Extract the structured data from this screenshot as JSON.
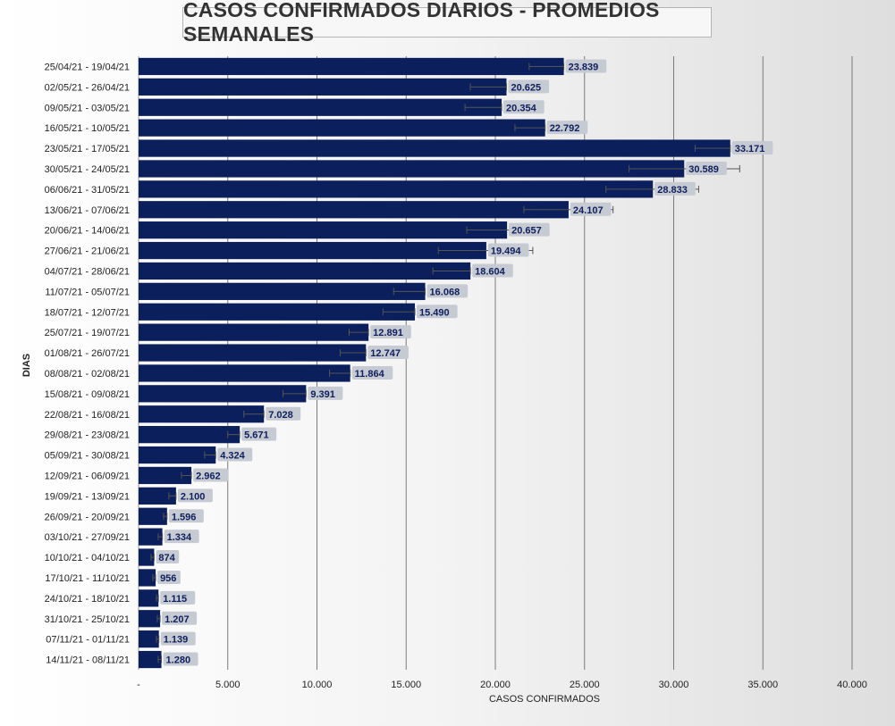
{
  "chart_data": {
    "type": "bar",
    "orientation": "horizontal",
    "title": "CASOS CONFIRMADOS DIARIOS - PROMEDIOS SEMANALES",
    "xlabel": "CASOS CONFIRMADOS",
    "ylabel": "DIAS",
    "xlim": [
      0,
      40000
    ],
    "xticks": [
      "-",
      "5.000",
      "10.000",
      "15.000",
      "20.000",
      "25.000",
      "30.000",
      "35.000",
      "40.000"
    ],
    "grid": "vertical",
    "colors": {
      "bar": "#0a1f5c",
      "label_bg": "#c6cad3",
      "error_bar": "#555555"
    },
    "categories": [
      "25/04/21 - 19/04/21",
      "02/05/21 - 26/04/21",
      "09/05/21 - 03/05/21",
      "16/05/21 - 10/05/21",
      "23/05/21 - 17/05/21",
      "30/05/21 - 24/05/21",
      "06/06/21 - 31/05/21",
      "13/06/21 - 07/06/21",
      "20/06/21 - 14/06/21",
      "27/06/21 - 21/06/21",
      "04/07/21 - 28/06/21",
      "11/07/21 - 05/07/21",
      "18/07/21 - 12/07/21",
      "25/07/21 - 19/07/21",
      "01/08/21 - 26/07/21",
      "08/08/21 - 02/08/21",
      "15/08/21 - 09/08/21",
      "22/08/21 - 16/08/21",
      "29/08/21 - 23/08/21",
      "05/09/21 - 30/08/21",
      "12/09/21 - 06/09/21",
      "19/09/21 - 13/09/21",
      "26/09/21 - 20/09/21",
      "03/10/21 - 27/09/21",
      "10/10/21 - 04/10/21",
      "17/10/21 - 11/10/21",
      "24/10/21 - 18/10/21",
      "31/10/21 - 25/10/21",
      "07/11/21 - 01/11/21",
      "14/11/21 - 08/11/21"
    ],
    "values": [
      23839,
      20625,
      20354,
      22792,
      33171,
      30589,
      28833,
      24107,
      20657,
      19494,
      18604,
      16068,
      15490,
      12891,
      12747,
      11864,
      9391,
      7028,
      5671,
      4324,
      2962,
      2100,
      1596,
      1334,
      874,
      956,
      1115,
      1207,
      1139,
      1280
    ],
    "value_labels": [
      "23.839",
      "20.625",
      "20.354",
      "22.792",
      "33.171",
      "30.589",
      "28.833",
      "24.107",
      "20.657",
      "19.494",
      "18.604",
      "16.068",
      "15.490",
      "12.891",
      "12.747",
      "11.864",
      "9.391",
      "7.028",
      "5.671",
      "4.324",
      "2.962",
      "2.100",
      "1.596",
      "1.334",
      "874",
      "956",
      "1.115",
      "1.207",
      "1.139",
      "1.280"
    ],
    "error_bars": [
      [
        21900,
        23839
      ],
      [
        18600,
        20625
      ],
      [
        18300,
        20354
      ],
      [
        21100,
        22792
      ],
      [
        31200,
        33171
      ],
      [
        27500,
        33700
      ],
      [
        26200,
        31400
      ],
      [
        21600,
        26600
      ],
      [
        18400,
        22800
      ],
      [
        16800,
        22100
      ],
      [
        16500,
        18604
      ],
      [
        14300,
        16068
      ],
      [
        13700,
        15490
      ],
      [
        11800,
        12891
      ],
      [
        11300,
        12747
      ],
      [
        10700,
        11864
      ],
      [
        8100,
        9391
      ],
      [
        5900,
        7028
      ],
      [
        5000,
        5671
      ],
      [
        3700,
        4324
      ],
      [
        2400,
        2962
      ],
      [
        1700,
        2100
      ],
      [
        1400,
        1596
      ],
      [
        1100,
        1334
      ],
      [
        700,
        874
      ],
      [
        800,
        956
      ],
      [
        1000,
        1115
      ],
      [
        1050,
        1207
      ],
      [
        1000,
        1139
      ],
      [
        1100,
        1280
      ]
    ]
  }
}
